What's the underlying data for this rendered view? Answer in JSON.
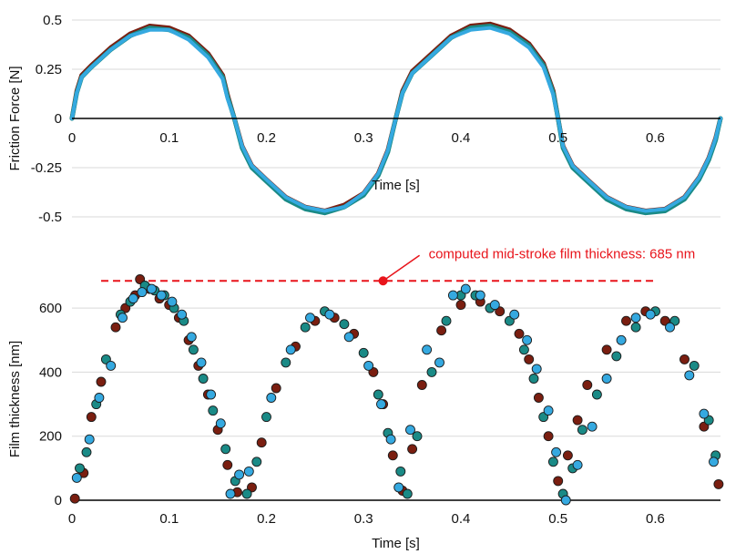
{
  "chart_data": [
    {
      "type": "line",
      "xlabel": "Time [s]",
      "ylabel": "Friction Force [N]",
      "xlim": [
        0,
        0.667
      ],
      "ylim": [
        -0.5,
        0.5
      ],
      "x_ticks": [
        "0",
        "0.1",
        "0.2",
        "0.3",
        "0.4",
        "0.5",
        "0.6"
      ],
      "y_ticks": [
        "0.5",
        "0.25",
        "0",
        "-0.25",
        "-0.5"
      ],
      "grid": true,
      "series": [
        {
          "color": "#7a1e10",
          "x": [
            0,
            0.005,
            0.01,
            0.02,
            0.04,
            0.06,
            0.08,
            0.1,
            0.12,
            0.14,
            0.155,
            0.16,
            0.167,
            0.175,
            0.185,
            0.2,
            0.22,
            0.24,
            0.26,
            0.28,
            0.3,
            0.315,
            0.325,
            0.333,
            0.34,
            0.35,
            0.37,
            0.39,
            0.41,
            0.43,
            0.45,
            0.47,
            0.485,
            0.495,
            0.5,
            0.505,
            0.515,
            0.53,
            0.55,
            0.57,
            0.59,
            0.61,
            0.63,
            0.645,
            0.655,
            0.662,
            0.667
          ],
          "y": [
            0,
            0.14,
            0.22,
            0.27,
            0.36,
            0.43,
            0.47,
            0.46,
            0.42,
            0.33,
            0.22,
            0.12,
            0,
            -0.14,
            -0.24,
            -0.31,
            -0.4,
            -0.45,
            -0.47,
            -0.44,
            -0.38,
            -0.28,
            -0.16,
            0,
            0.14,
            0.24,
            0.33,
            0.42,
            0.47,
            0.48,
            0.45,
            0.38,
            0.28,
            0.14,
            0,
            -0.14,
            -0.24,
            -0.31,
            -0.4,
            -0.45,
            -0.47,
            -0.46,
            -0.4,
            -0.3,
            -0.2,
            -0.1,
            0
          ]
        },
        {
          "color": "#1a8a86",
          "x": [
            0,
            0.005,
            0.01,
            0.02,
            0.04,
            0.06,
            0.08,
            0.1,
            0.12,
            0.14,
            0.155,
            0.16,
            0.167,
            0.175,
            0.185,
            0.2,
            0.22,
            0.24,
            0.26,
            0.28,
            0.3,
            0.315,
            0.325,
            0.333,
            0.34,
            0.35,
            0.37,
            0.39,
            0.41,
            0.43,
            0.45,
            0.47,
            0.485,
            0.495,
            0.5,
            0.505,
            0.515,
            0.53,
            0.55,
            0.57,
            0.59,
            0.61,
            0.63,
            0.645,
            0.655,
            0.662,
            0.667
          ],
          "y": [
            0,
            0.13,
            0.21,
            0.26,
            0.35,
            0.42,
            0.46,
            0.45,
            0.41,
            0.32,
            0.21,
            0.11,
            0,
            -0.15,
            -0.25,
            -0.32,
            -0.41,
            -0.46,
            -0.48,
            -0.45,
            -0.39,
            -0.29,
            -0.17,
            0,
            0.13,
            0.23,
            0.32,
            0.41,
            0.46,
            0.47,
            0.44,
            0.37,
            0.27,
            0.13,
            0,
            -0.15,
            -0.25,
            -0.32,
            -0.41,
            -0.46,
            -0.48,
            -0.47,
            -0.41,
            -0.31,
            -0.21,
            -0.11,
            0
          ]
        },
        {
          "color": "#35a9e0",
          "x": [
            0,
            0.005,
            0.01,
            0.02,
            0.04,
            0.06,
            0.08,
            0.1,
            0.12,
            0.14,
            0.155,
            0.16,
            0.167,
            0.175,
            0.185,
            0.2,
            0.22,
            0.24,
            0.26,
            0.28,
            0.3,
            0.315,
            0.325,
            0.333,
            0.34,
            0.35,
            0.37,
            0.39,
            0.41,
            0.43,
            0.45,
            0.47,
            0.485,
            0.495,
            0.5,
            0.505,
            0.515,
            0.53,
            0.55,
            0.57,
            0.59,
            0.61,
            0.63,
            0.645,
            0.655,
            0.662,
            0.667
          ],
          "y": [
            0,
            0.13,
            0.21,
            0.26,
            0.35,
            0.42,
            0.45,
            0.45,
            0.4,
            0.31,
            0.2,
            0.1,
            0,
            -0.14,
            -0.24,
            -0.31,
            -0.4,
            -0.45,
            -0.47,
            -0.45,
            -0.38,
            -0.28,
            -0.16,
            0,
            0.13,
            0.23,
            0.32,
            0.41,
            0.45,
            0.46,
            0.43,
            0.36,
            0.26,
            0.12,
            0,
            -0.14,
            -0.24,
            -0.31,
            -0.4,
            -0.45,
            -0.47,
            -0.46,
            -0.4,
            -0.3,
            -0.2,
            -0.1,
            0
          ]
        }
      ]
    },
    {
      "type": "scatter",
      "xlabel": "Time [s]",
      "ylabel": "Film thickness [nm]",
      "xlim": [
        0,
        0.667
      ],
      "ylim": [
        0,
        700
      ],
      "x_ticks": [
        "0",
        "0.1",
        "0.2",
        "0.3",
        "0.4",
        "0.5",
        "0.6"
      ],
      "y_ticks": [
        "600",
        "400",
        "200",
        "0"
      ],
      "grid": true,
      "series": [
        {
          "color": "#7a1e10",
          "x": [
            0.003,
            0.012,
            0.02,
            0.03,
            0.045,
            0.055,
            0.065,
            0.07,
            0.08,
            0.09,
            0.1,
            0.11,
            0.12,
            0.13,
            0.14,
            0.15,
            0.16,
            0.17,
            0.185,
            0.195,
            0.21,
            0.23,
            0.25,
            0.27,
            0.29,
            0.31,
            0.32,
            0.33,
            0.34,
            0.35,
            0.36,
            0.38,
            0.4,
            0.42,
            0.44,
            0.46,
            0.47,
            0.48,
            0.49,
            0.5,
            0.51,
            0.52,
            0.53,
            0.55,
            0.57,
            0.59,
            0.61,
            0.63,
            0.65,
            0.665
          ],
          "y": [
            5,
            85,
            260,
            370,
            540,
            600,
            640,
            690,
            660,
            630,
            610,
            570,
            500,
            420,
            330,
            220,
            110,
            25,
            40,
            180,
            350,
            480,
            560,
            570,
            520,
            400,
            300,
            140,
            30,
            160,
            360,
            530,
            610,
            620,
            590,
            520,
            440,
            320,
            200,
            60,
            140,
            250,
            360,
            470,
            560,
            590,
            560,
            440,
            230,
            50
          ]
        },
        {
          "color": "#1a8a86",
          "x": [
            0.008,
            0.015,
            0.025,
            0.035,
            0.05,
            0.06,
            0.075,
            0.085,
            0.095,
            0.105,
            0.115,
            0.125,
            0.135,
            0.145,
            0.158,
            0.168,
            0.18,
            0.19,
            0.2,
            0.22,
            0.24,
            0.26,
            0.28,
            0.3,
            0.315,
            0.325,
            0.338,
            0.345,
            0.355,
            0.37,
            0.385,
            0.4,
            0.415,
            0.43,
            0.45,
            0.465,
            0.475,
            0.485,
            0.495,
            0.505,
            0.515,
            0.525,
            0.54,
            0.56,
            0.58,
            0.6,
            0.62,
            0.64,
            0.655,
            0.662
          ],
          "y": [
            100,
            150,
            300,
            440,
            580,
            620,
            670,
            655,
            640,
            600,
            560,
            470,
            380,
            280,
            160,
            60,
            20,
            120,
            260,
            430,
            540,
            590,
            550,
            460,
            330,
            210,
            90,
            20,
            200,
            400,
            560,
            640,
            640,
            600,
            560,
            470,
            380,
            260,
            120,
            20,
            100,
            220,
            330,
            450,
            540,
            590,
            560,
            420,
            250,
            140
          ]
        },
        {
          "color": "#35a9e0",
          "x": [
            0.005,
            0.018,
            0.028,
            0.04,
            0.052,
            0.063,
            0.072,
            0.082,
            0.092,
            0.103,
            0.113,
            0.123,
            0.133,
            0.143,
            0.153,
            0.163,
            0.172,
            0.182,
            0.205,
            0.225,
            0.245,
            0.265,
            0.285,
            0.305,
            0.318,
            0.328,
            0.336,
            0.348,
            0.365,
            0.378,
            0.392,
            0.405,
            0.42,
            0.435,
            0.455,
            0.468,
            0.478,
            0.49,
            0.498,
            0.508,
            0.52,
            0.535,
            0.55,
            0.565,
            0.58,
            0.595,
            0.615,
            0.635,
            0.65,
            0.66
          ],
          "y": [
            70,
            190,
            320,
            420,
            570,
            630,
            650,
            660,
            640,
            620,
            580,
            510,
            430,
            330,
            240,
            20,
            80,
            90,
            320,
            470,
            570,
            580,
            510,
            420,
            300,
            190,
            40,
            220,
            470,
            430,
            640,
            660,
            640,
            610,
            580,
            500,
            410,
            280,
            150,
            0,
            110,
            230,
            380,
            500,
            570,
            580,
            540,
            390,
            270,
            120
          ]
        }
      ]
    }
  ],
  "annotation": {
    "label": "computed mid-stroke film thickness: 685 nm",
    "value": 685,
    "x_start": 0.03,
    "x_end": 0.6,
    "marker_x": 0.32,
    "color": "#e8141b"
  }
}
